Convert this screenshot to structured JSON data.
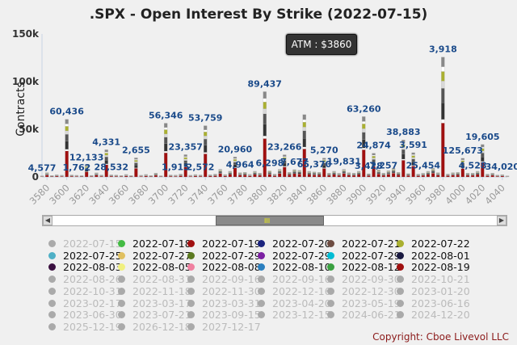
{
  "title": ".SPX - Open Interest By Strike (2022-07-15)",
  "atm_label": "ATM : $3860",
  "copyright": "Copyright: Cboe Livevol LLC",
  "nav_grip": "III",
  "chart_data": {
    "type": "bar",
    "stacked": true,
    "ylabel": "Contracts",
    "ylim": [
      0,
      150000
    ],
    "yticks": [
      "0",
      "50k",
      "100k",
      "150k"
    ],
    "ytick_values": [
      0,
      50000,
      100000,
      150000
    ],
    "xlim": [
      3575,
      4045
    ],
    "xticks": [
      "3580",
      "3600",
      "3620",
      "3640",
      "3660",
      "3680",
      "3700",
      "3720",
      "3740",
      "3760",
      "3780",
      "3800",
      "3820",
      "3840",
      "3860",
      "3880",
      "3900",
      "3920",
      "3940",
      "3960",
      "3980",
      "4000",
      "4020",
      "4040"
    ],
    "xtick_values": [
      3580,
      3600,
      3620,
      3640,
      3660,
      3680,
      3700,
      3720,
      3740,
      3760,
      3780,
      3800,
      3820,
      3840,
      3860,
      3880,
      3900,
      3920,
      3940,
      3960,
      3980,
      4000,
      4020,
      4040
    ],
    "legend_position": "bottom",
    "colors": [
      "#a01010",
      "#ffffff",
      "#333333",
      "#555555",
      "#d8d8d8",
      "#aab030",
      "#ffffff",
      "#888888"
    ],
    "strikes": [
      3575,
      3580,
      3585,
      3590,
      3595,
      3600,
      3605,
      3610,
      3615,
      3620,
      3625,
      3630,
      3635,
      3640,
      3645,
      3650,
      3655,
      3660,
      3665,
      3670,
      3675,
      3680,
      3685,
      3690,
      3695,
      3700,
      3705,
      3710,
      3715,
      3720,
      3725,
      3730,
      3735,
      3740,
      3745,
      3750,
      3755,
      3760,
      3765,
      3770,
      3775,
      3780,
      3785,
      3790,
      3795,
      3800,
      3805,
      3810,
      3815,
      3820,
      3825,
      3830,
      3835,
      3840,
      3845,
      3850,
      3855,
      3860,
      3865,
      3870,
      3875,
      3880,
      3885,
      3890,
      3895,
      3900,
      3905,
      3910,
      3915,
      3920,
      3925,
      3930,
      3935,
      3940,
      3945,
      3950,
      3955,
      3960,
      3965,
      3970,
      3975,
      3980,
      3985,
      3990,
      3995,
      4000,
      4005,
      4010,
      4015,
      4020,
      4025,
      4030,
      4035,
      4040,
      4045
    ],
    "totals": [
      1200,
      4577,
      1500,
      2300,
      1800,
      60436,
      2100,
      1762,
      1400,
      12133,
      1700,
      4331,
      2000,
      28532,
      2200,
      2000,
      1600,
      2655,
      1500,
      20000,
      1800,
      2655,
      1500,
      4000,
      1300,
      56346,
      2100,
      1915,
      3000,
      23357,
      1800,
      2572,
      2100,
      53759,
      2400,
      3000,
      8000,
      2572,
      6000,
      20960,
      4500,
      4964,
      2800,
      6000,
      4000,
      89437,
      6298,
      3000,
      8000,
      23266,
      5000,
      7677,
      7000,
      65370,
      6000,
      5270,
      5000,
      19831,
      4000,
      6000,
      3900,
      8000,
      4500,
      4000,
      6000,
      63260,
      3428,
      24874,
      7257,
      4000,
      6500,
      9000,
      5000,
      38883,
      3591,
      25454,
      3000,
      3918,
      6000,
      9000,
      4500,
      125673,
      3200,
      4528,
      5000,
      19605,
      4000,
      4000,
      6000,
      34020,
      3000,
      4000,
      2000,
      2500,
      1000
    ],
    "value_labels": [
      {
        "x": 3575,
        "text": "4,577"
      },
      {
        "x": 3600,
        "text": "60,436"
      },
      {
        "x": 3610,
        "text": "1,762"
      },
      {
        "x": 3620,
        "text": "12,133"
      },
      {
        "x": 3640,
        "text": "4,331"
      },
      {
        "x": 3645,
        "text": "28,532"
      },
      {
        "x": 3670,
        "text": "2,655"
      },
      {
        "x": 3700,
        "text": "56,346"
      },
      {
        "x": 3710,
        "text": "1,915"
      },
      {
        "x": 3720,
        "text": "23,357"
      },
      {
        "x": 3735,
        "text": "2,572"
      },
      {
        "x": 3740,
        "text": "53,759"
      },
      {
        "x": 3770,
        "text": "20,960"
      },
      {
        "x": 3775,
        "text": "4,964"
      },
      {
        "x": 3800,
        "text": "89,437"
      },
      {
        "x": 3805,
        "text": "6,298"
      },
      {
        "x": 3820,
        "text": "23,266"
      },
      {
        "x": 3830,
        "text": "7,677"
      },
      {
        "x": 3850,
        "text": "65,370"
      },
      {
        "x": 3860,
        "text": "5,270"
      },
      {
        "x": 3880,
        "text": "19,831"
      },
      {
        "x": 3900,
        "text": "63,260"
      },
      {
        "x": 3905,
        "text": "3,428"
      },
      {
        "x": 3910,
        "text": "24,874"
      },
      {
        "x": 3920,
        "text": "7,257"
      },
      {
        "x": 3940,
        "text": "38,883"
      },
      {
        "x": 3950,
        "text": "3,591"
      },
      {
        "x": 3960,
        "text": "25,454"
      },
      {
        "x": 3980,
        "text": "3,918"
      },
      {
        "x": 4000,
        "text": "125,673"
      },
      {
        "x": 4010,
        "text": "4,528"
      },
      {
        "x": 4020,
        "text": "19,605"
      },
      {
        "x": 4040,
        "text": "34,020"
      }
    ]
  },
  "legend": [
    {
      "label": "2022-07-15",
      "color": "#aaaaaa",
      "active": false
    },
    {
      "label": "2022-07-18",
      "color": "#44bb44",
      "active": true
    },
    {
      "label": "2022-07-19",
      "color": "#a01010",
      "active": true
    },
    {
      "label": "2022-07-20",
      "color": "#1a237e",
      "active": true
    },
    {
      "label": "2022-07-21",
      "color": "#6d4c41",
      "active": true
    },
    {
      "label": "2022-07-22",
      "color": "#aab030",
      "active": true
    },
    {
      "label": "2022-07-25",
      "color": "#4fb0c6",
      "active": true
    },
    {
      "label": "2022-07-27",
      "color": "#e0c060",
      "active": true
    },
    {
      "label": "2022-07-29",
      "color": "#5c7a20",
      "active": true
    },
    {
      "label": "2022-07-29",
      "color": "#7b1fa2",
      "active": true
    },
    {
      "label": "2022-07-29",
      "color": "#00bcd4",
      "active": true
    },
    {
      "label": "2022-08-01",
      "color": "#1a1a40",
      "active": true
    },
    {
      "label": "2022-08-03",
      "color": "#3a1040",
      "active": true
    },
    {
      "label": "2022-08-05",
      "color": "#f0f080",
      "active": true
    },
    {
      "label": "2022-08-08",
      "color": "#f080a0",
      "active": true
    },
    {
      "label": "2022-08-10",
      "color": "#2a7fbf",
      "active": true
    },
    {
      "label": "2022-08-12",
      "color": "#3aa040",
      "active": true
    },
    {
      "label": "2022-08-19",
      "color": "#a01010",
      "active": true
    },
    {
      "label": "2022-08-26",
      "color": "#aaaaaa",
      "active": false
    },
    {
      "label": "2022-08-31",
      "color": "#aaaaaa",
      "active": false
    },
    {
      "label": "2022-09-16",
      "color": "#aaaaaa",
      "active": false
    },
    {
      "label": "2022-09-16",
      "color": "#aaaaaa",
      "active": false
    },
    {
      "label": "2022-09-30",
      "color": "#aaaaaa",
      "active": false
    },
    {
      "label": "2022-10-21",
      "color": "#aaaaaa",
      "active": false
    },
    {
      "label": "2022-10-31",
      "color": "#aaaaaa",
      "active": false
    },
    {
      "label": "2022-11-18",
      "color": "#aaaaaa",
      "active": false
    },
    {
      "label": "2022-11-30",
      "color": "#aaaaaa",
      "active": false
    },
    {
      "label": "2022-12-16",
      "color": "#aaaaaa",
      "active": false
    },
    {
      "label": "2022-12-30",
      "color": "#aaaaaa",
      "active": false
    },
    {
      "label": "2023-01-20",
      "color": "#aaaaaa",
      "active": false
    },
    {
      "label": "2023-02-17",
      "color": "#aaaaaa",
      "active": false
    },
    {
      "label": "2023-03-17",
      "color": "#aaaaaa",
      "active": false
    },
    {
      "label": "2023-03-31",
      "color": "#aaaaaa",
      "active": false
    },
    {
      "label": "2023-04-20",
      "color": "#aaaaaa",
      "active": false
    },
    {
      "label": "2023-05-19",
      "color": "#aaaaaa",
      "active": false
    },
    {
      "label": "2023-06-16",
      "color": "#aaaaaa",
      "active": false
    },
    {
      "label": "2023-06-30",
      "color": "#aaaaaa",
      "active": false
    },
    {
      "label": "2023-07-21",
      "color": "#aaaaaa",
      "active": false
    },
    {
      "label": "2023-09-15",
      "color": "#aaaaaa",
      "active": false
    },
    {
      "label": "2023-12-15",
      "color": "#aaaaaa",
      "active": false
    },
    {
      "label": "2024-06-21",
      "color": "#aaaaaa",
      "active": false
    },
    {
      "label": "2024-12-20",
      "color": "#aaaaaa",
      "active": false
    },
    {
      "label": "2025-12-19",
      "color": "#aaaaaa",
      "active": false
    },
    {
      "label": "2026-12-18",
      "color": "#aaaaaa",
      "active": false
    },
    {
      "label": "2027-12-17",
      "color": "#aaaaaa",
      "active": false
    }
  ]
}
